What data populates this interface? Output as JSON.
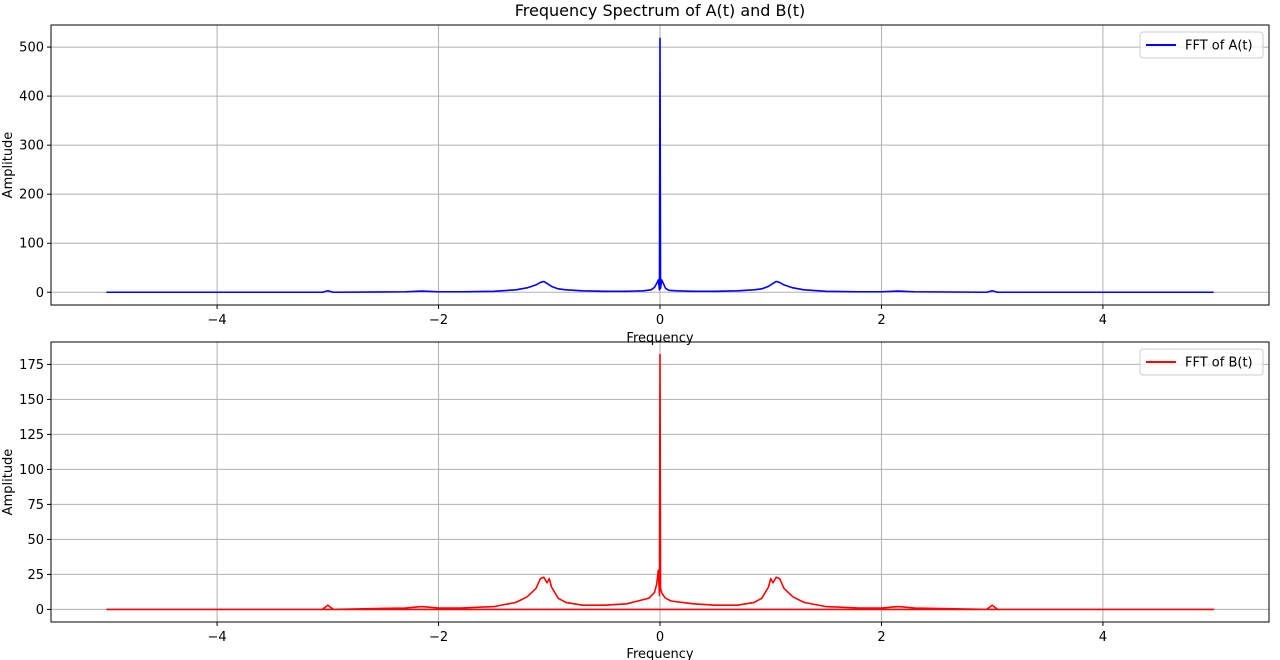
{
  "title": "Frequency Spectrum of A(t) and B(t)",
  "chart_data": [
    {
      "type": "line",
      "ylabel": "Amplitude",
      "xlabel": "Frequency",
      "xlim": [
        -5.5,
        5.5
      ],
      "ylim": [
        -26,
        545
      ],
      "xticks": [
        -4,
        -2,
        0,
        2,
        4
      ],
      "xtick_labels": [
        "−4",
        "−2",
        "0",
        "2",
        "4"
      ],
      "yticks": [
        0,
        100,
        200,
        300,
        400,
        500
      ],
      "ytick_labels": [
        "0",
        "100",
        "200",
        "300",
        "400",
        "500"
      ],
      "grid": true,
      "legend_position": "top-right",
      "series": [
        {
          "name": "FFT of A(t)",
          "color": "#0000ff",
          "x": [
            -5.0,
            -3.05,
            -3.0,
            -2.95,
            -2.3,
            -2.15,
            -2.0,
            -1.8,
            -1.5,
            -1.3,
            -1.2,
            -1.12,
            -1.08,
            -1.05,
            -1.02,
            -0.98,
            -0.92,
            -0.85,
            -0.7,
            -0.5,
            -0.3,
            -0.15,
            -0.08,
            -0.05,
            -0.03,
            -0.015,
            -0.005,
            0.0,
            0.005,
            0.015,
            0.03,
            0.05,
            0.08,
            0.15,
            0.3,
            0.5,
            0.7,
            0.85,
            0.92,
            0.98,
            1.02,
            1.05,
            1.08,
            1.12,
            1.2,
            1.3,
            1.5,
            1.8,
            2.0,
            2.15,
            2.3,
            2.95,
            3.0,
            3.05,
            5.0
          ],
          "y": [
            0,
            0,
            3,
            0,
            1,
            2.5,
            1,
            1,
            2,
            5,
            9,
            15,
            20,
            22,
            18,
            12,
            7,
            5,
            3,
            2,
            2,
            3,
            5,
            10,
            18,
            25,
            5,
            518,
            8,
            25,
            18,
            8,
            4,
            3,
            2,
            2,
            3,
            5,
            7,
            12,
            18,
            22,
            20,
            15,
            9,
            5,
            2,
            1,
            1,
            2.5,
            1,
            0,
            3,
            0,
            0
          ]
        }
      ]
    },
    {
      "type": "line",
      "ylabel": "Amplitude",
      "xlabel": "Frequency",
      "xlim": [
        -5.5,
        5.5
      ],
      "ylim": [
        -9,
        191
      ],
      "xticks": [
        -4,
        -2,
        0,
        2,
        4
      ],
      "xtick_labels": [
        "−4",
        "−2",
        "0",
        "2",
        "4"
      ],
      "yticks": [
        0,
        25,
        50,
        75,
        100,
        125,
        150,
        175
      ],
      "ytick_labels": [
        "0",
        "25",
        "50",
        "75",
        "100",
        "125",
        "150",
        "175"
      ],
      "grid": true,
      "legend_position": "top-right",
      "series": [
        {
          "name": "FFT of B(t)",
          "color": "#ff0000",
          "x": [
            -5.0,
            -3.05,
            -3.0,
            -2.95,
            -2.3,
            -2.15,
            -2.0,
            -1.8,
            -1.5,
            -1.3,
            -1.2,
            -1.12,
            -1.08,
            -1.05,
            -1.02,
            -1.0,
            -0.98,
            -0.92,
            -0.85,
            -0.7,
            -0.5,
            -0.3,
            -0.2,
            -0.1,
            -0.05,
            -0.03,
            -0.015,
            -0.005,
            0.0,
            0.005,
            0.015,
            0.03,
            0.05,
            0.1,
            0.2,
            0.3,
            0.5,
            0.7,
            0.85,
            0.92,
            0.98,
            1.0,
            1.02,
            1.05,
            1.08,
            1.12,
            1.2,
            1.3,
            1.5,
            1.8,
            2.0,
            2.15,
            2.3,
            2.95,
            3.0,
            3.05,
            5.0,
            5.0,
            -5.0
          ],
          "y": [
            0,
            0,
            3,
            0,
            1,
            2,
            1,
            1,
            2,
            5,
            9,
            15,
            22,
            23,
            19,
            22,
            16,
            8,
            5,
            3,
            3,
            4,
            6,
            8,
            12,
            18,
            28,
            10,
            182,
            15,
            12,
            10,
            8,
            6,
            5,
            4,
            3,
            3,
            5,
            8,
            16,
            22,
            19,
            23,
            22,
            15,
            9,
            5,
            2,
            1,
            1,
            2,
            1,
            0,
            3,
            0,
            0,
            0,
            0
          ]
        }
      ]
    }
  ]
}
